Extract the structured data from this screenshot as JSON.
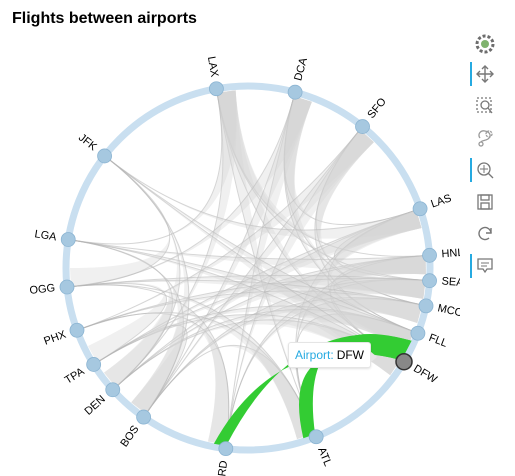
{
  "title": "Flights between airports",
  "colors": {
    "ring": "#c9dff0",
    "node": "#a6c8e0",
    "node_stroke": "#8bb4d2",
    "chord": "#d3d3d3",
    "chord_highlight": "#33cc33",
    "tooltip_label": "#26aae1"
  },
  "toolbar": {
    "items": [
      {
        "name": "bokeh-logo-icon",
        "active": false
      },
      {
        "name": "pan-icon",
        "active": true
      },
      {
        "name": "box-zoom-icon",
        "active": false
      },
      {
        "name": "lasso-select-icon",
        "active": false
      },
      {
        "name": "wheel-zoom-icon",
        "active": true
      },
      {
        "name": "save-icon",
        "active": false
      },
      {
        "name": "reset-icon",
        "active": false
      },
      {
        "name": "hover-icon",
        "active": true
      }
    ]
  },
  "diagram": {
    "nodes": [
      "LAX",
      "DCA",
      "SFO",
      "LAS",
      "HNL",
      "SEA",
      "MCO",
      "FLL",
      "DFW",
      "ATL",
      "ORD",
      "BOS",
      "DEN",
      "TPA",
      "PHX",
      "OGG",
      "LGA",
      "JFK"
    ],
    "highlighted_node": "DFW",
    "highlighted_edges": [
      [
        "DFW",
        "ORD"
      ],
      [
        "DFW",
        "ATL"
      ]
    ]
  },
  "tooltip": {
    "label": "Airport:",
    "value": "DFW"
  }
}
